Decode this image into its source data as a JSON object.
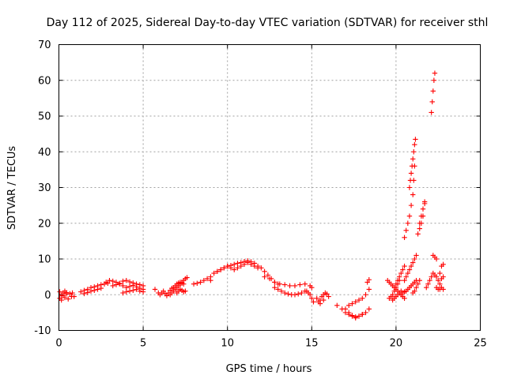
{
  "chart_data": {
    "type": "scatter",
    "title": "Day 112 of 2025, Sidereal Day-to-day VTEC variation (SDTVAR) for receiver sthl",
    "xlabel": "GPS time / hours",
    "ylabel": "SDTVAR / TECUs",
    "xlim": [
      0,
      25
    ],
    "ylim": [
      -10,
      70
    ],
    "xticks": [
      "0",
      "5",
      "10",
      "15",
      "20",
      "25"
    ],
    "yticks": [
      "-10",
      "0",
      "10",
      "20",
      "30",
      "40",
      "50",
      "60",
      "70"
    ],
    "grid": true,
    "marker": "plus",
    "color": "#ff0000",
    "series": [
      {
        "name": "t00",
        "x": [
          0.05,
          0.15,
          0.25,
          0.35,
          0.45,
          0.55,
          0.65,
          0.75
        ],
        "y": [
          0.8,
          -0.2,
          0.5,
          -0.8,
          0.2,
          -1.2,
          0.3,
          -0.5
        ]
      },
      {
        "name": "t01",
        "x": [
          0.05,
          0.15,
          0.25,
          0.35,
          0.45
        ],
        "y": [
          -1.0,
          -1.5,
          -0.3,
          1.0,
          0.6
        ]
      },
      {
        "name": "t02",
        "x": [
          0.8,
          0.9
        ],
        "y": [
          0.5,
          -0.5
        ]
      },
      {
        "name": "t03",
        "x": [
          1.3,
          1.5,
          1.7,
          1.9,
          2.1,
          2.3,
          2.5,
          2.7,
          2.9
        ],
        "y": [
          0.8,
          1.2,
          1.5,
          2.0,
          2.2,
          2.5,
          2.8,
          3.0,
          3.2
        ]
      },
      {
        "name": "t04",
        "x": [
          1.5,
          1.7,
          1.9,
          2.1,
          2.3,
          2.5
        ],
        "y": [
          0.3,
          0.6,
          1.0,
          1.2,
          1.5,
          1.8
        ]
      },
      {
        "name": "t05",
        "x": [
          2.8,
          3.0,
          3.2,
          3.4,
          3.6,
          3.8,
          4.0,
          4.2,
          4.4,
          4.6,
          4.8,
          5.0
        ],
        "y": [
          3.5,
          4.0,
          3.8,
          3.5,
          3.2,
          3.8,
          4.0,
          3.6,
          3.3,
          3.0,
          2.8,
          2.5
        ]
      },
      {
        "name": "t06",
        "x": [
          3.2,
          3.4,
          3.6,
          3.8,
          4.0,
          4.2,
          4.4,
          4.6,
          4.8,
          5.0
        ],
        "y": [
          2.5,
          2.8,
          3.0,
          2.5,
          2.0,
          2.3,
          2.6,
          2.2,
          1.8,
          1.5
        ]
      },
      {
        "name": "t07",
        "x": [
          3.8,
          4.0,
          4.2,
          4.4,
          4.6,
          4.8,
          5.0
        ],
        "y": [
          0.5,
          0.8,
          1.0,
          1.2,
          1.5,
          1.0,
          0.8
        ]
      },
      {
        "name": "t08",
        "x": [
          5.7,
          5.9
        ],
        "y": [
          1.5,
          0.5
        ]
      },
      {
        "name": "t09",
        "x": [
          6.0,
          6.1,
          6.2,
          6.3,
          6.4,
          6.5,
          6.6,
          6.7,
          6.8,
          6.9,
          7.0,
          7.1,
          7.2,
          7.3,
          7.4
        ],
        "y": [
          0.0,
          0.5,
          1.0,
          0.3,
          -0.3,
          0.5,
          1.2,
          1.8,
          2.0,
          2.5,
          3.0,
          3.3,
          3.5,
          3.2,
          3.0
        ]
      },
      {
        "name": "t10",
        "x": [
          6.6,
          6.7,
          6.8,
          6.9,
          7.0,
          7.1,
          7.2,
          7.3,
          7.4,
          7.5,
          7.6
        ],
        "y": [
          0.0,
          0.5,
          1.0,
          1.5,
          2.0,
          2.5,
          3.0,
          3.5,
          4.0,
          4.5,
          4.8
        ]
      },
      {
        "name": "t11",
        "x": [
          7.0,
          7.1,
          7.2,
          7.3,
          7.4,
          7.5
        ],
        "y": [
          0.5,
          1.0,
          1.5,
          1.2,
          0.8,
          1.0
        ]
      },
      {
        "name": "t12",
        "x": [
          8.0,
          8.2,
          8.4,
          8.6,
          8.8,
          9.0
        ],
        "y": [
          3.0,
          3.2,
          3.5,
          4.0,
          4.5,
          4.0
        ]
      },
      {
        "name": "t13",
        "x": [
          9.0,
          9.2,
          9.4,
          9.6,
          9.8,
          10.0,
          10.2,
          10.4,
          10.6,
          10.8,
          11.0,
          11.2,
          11.4,
          11.6,
          11.8,
          12.0,
          12.2,
          12.4,
          12.6,
          12.8,
          13.0
        ],
        "y": [
          5.0,
          6.0,
          6.5,
          7.0,
          7.5,
          8.0,
          8.2,
          8.5,
          8.8,
          9.0,
          9.3,
          9.5,
          9.2,
          8.8,
          8.0,
          7.5,
          6.5,
          5.5,
          4.5,
          3.5,
          3.0
        ]
      },
      {
        "name": "t14",
        "x": [
          9.4,
          9.6,
          9.8,
          10.0,
          10.2,
          10.4,
          10.6,
          10.8,
          11.0,
          11.2,
          11.4,
          11.6,
          11.8
        ],
        "y": [
          6.5,
          7.0,
          7.5,
          8.0,
          7.5,
          7.0,
          7.5,
          8.0,
          8.5,
          9.0,
          8.5,
          8.0,
          7.5
        ]
      },
      {
        "name": "t15",
        "x": [
          12.2,
          12.5,
          12.8,
          13.1,
          13.4,
          13.7,
          14.0,
          14.3,
          14.6,
          14.9,
          15.0
        ],
        "y": [
          5.0,
          4.5,
          3.5,
          3.0,
          2.8,
          2.5,
          2.5,
          2.8,
          3.0,
          2.5,
          2.0
        ]
      },
      {
        "name": "t16",
        "x": [
          12.8,
          13.0,
          13.2,
          13.4,
          13.6,
          13.8,
          14.0,
          14.2,
          14.4,
          14.6
        ],
        "y": [
          2.0,
          1.5,
          1.0,
          0.5,
          0.2,
          0.0,
          0.0,
          0.2,
          0.5,
          1.0
        ]
      },
      {
        "name": "t17",
        "x": [
          14.7,
          14.8,
          14.9,
          15.0,
          15.1
        ],
        "y": [
          1.0,
          0.5,
          0.0,
          -1.0,
          -2.0
        ]
      },
      {
        "name": "t18",
        "x": [
          15.3,
          15.4,
          15.5,
          15.6,
          15.7,
          15.8,
          15.9,
          16.0
        ],
        "y": [
          -1.0,
          -2.0,
          -1.5,
          -0.5,
          0.0,
          0.5,
          0.2,
          -0.5
        ]
      },
      {
        "name": "t19",
        "x": [
          15.5,
          15.7
        ],
        "y": [
          -2.5,
          -1.5
        ]
      },
      {
        "name": "t20",
        "x": [
          16.5,
          16.8,
          17.0,
          17.2,
          17.4,
          17.6,
          17.8,
          18.0,
          18.2,
          18.4
        ],
        "y": [
          -3.0,
          -4.0,
          -5.0,
          -5.5,
          -6.0,
          -6.5,
          -6.0,
          -5.5,
          -5.0,
          -4.0
        ]
      },
      {
        "name": "t21",
        "x": [
          17.0,
          17.2,
          17.4,
          17.6,
          17.8,
          18.0
        ],
        "y": [
          -4.0,
          -5.0,
          -5.8,
          -6.2,
          -6.0,
          -5.5
        ]
      },
      {
        "name": "t22",
        "x": [
          17.2,
          17.4,
          17.6,
          17.8,
          18.0,
          18.2,
          18.4
        ],
        "y": [
          -3.0,
          -2.5,
          -2.0,
          -1.5,
          -1.0,
          0.0,
          1.5
        ]
      },
      {
        "name": "t23",
        "x": [
          18.3,
          18.4
        ],
        "y": [
          3.5,
          4.2
        ]
      },
      {
        "name": "t24",
        "x": [
          19.5,
          19.6,
          19.7,
          19.8,
          19.9,
          20.0,
          20.1,
          20.2,
          20.3,
          20.4,
          20.5
        ],
        "y": [
          4.0,
          3.5,
          3.0,
          2.5,
          2.0,
          1.5,
          1.0,
          0.5,
          0.0,
          -0.5,
          -1.0
        ]
      },
      {
        "name": "t25",
        "x": [
          19.6,
          19.7,
          19.8,
          19.9,
          20.0,
          20.1,
          20.2
        ],
        "y": [
          -1.0,
          -0.5,
          0.0,
          1.0,
          2.0,
          3.0,
          4.0
        ]
      },
      {
        "name": "t26",
        "x": [
          19.8,
          19.9,
          20.0,
          20.1,
          20.2,
          20.3
        ],
        "y": [
          -1.5,
          -1.0,
          -0.5,
          0.0,
          0.5,
          0.0
        ]
      },
      {
        "name": "t27",
        "x": [
          20.0,
          20.1,
          20.2,
          20.3,
          20.4,
          20.5
        ],
        "y": [
          3.0,
          4.0,
          5.0,
          6.0,
          7.0,
          8.0
        ]
      },
      {
        "name": "t28",
        "x": [
          20.3,
          20.4,
          20.5,
          20.6,
          20.7,
          20.8,
          20.9,
          21.0,
          21.1,
          21.2
        ],
        "y": [
          1.0,
          0.5,
          0.8,
          1.0,
          1.5,
          2.0,
          2.5,
          3.0,
          3.5,
          4.0
        ]
      },
      {
        "name": "t29",
        "x": [
          20.5,
          20.6,
          20.7,
          20.8,
          20.9,
          21.0,
          21.1,
          21.2
        ],
        "y": [
          4.0,
          5.0,
          6.0,
          7.0,
          8.0,
          9.0,
          10.0,
          11.0
        ]
      },
      {
        "name": "t30",
        "x": [
          20.5,
          20.6,
          20.7,
          20.8,
          20.9,
          21.0,
          21.05,
          21.1
        ],
        "y": [
          16.0,
          18.0,
          20.0,
          22.0,
          25.0,
          28.0,
          32.0,
          36.0
        ]
      },
      {
        "name": "t31",
        "x": [
          20.8,
          20.85,
          20.9,
          20.95,
          21.0,
          21.05,
          21.1,
          21.15
        ],
        "y": [
          30.0,
          32.0,
          34.0,
          36.0,
          38.0,
          40.0,
          42.0,
          43.5
        ]
      },
      {
        "name": "t32",
        "x": [
          21.0,
          21.1,
          21.2,
          21.3,
          21.4
        ],
        "y": [
          0.5,
          1.0,
          2.0,
          3.0,
          4.0
        ]
      },
      {
        "name": "t33",
        "x": [
          21.3,
          21.4,
          21.5,
          21.6,
          21.7
        ],
        "y": [
          17.0,
          18.5,
          20.0,
          22.0,
          25.5
        ]
      },
      {
        "name": "t34",
        "x": [
          21.4,
          21.5,
          21.6,
          21.7
        ],
        "y": [
          20.0,
          22.0,
          24.0,
          26.0
        ]
      },
      {
        "name": "t35",
        "x": [
          21.8,
          21.9,
          22.0,
          22.1,
          22.2,
          22.3,
          22.4
        ],
        "y": [
          2.0,
          3.0,
          4.0,
          5.0,
          6.0,
          5.5,
          5.0
        ]
      },
      {
        "name": "t36",
        "x": [
          22.1,
          22.15,
          22.2,
          22.25,
          22.3
        ],
        "y": [
          51.0,
          54.0,
          57.0,
          60.0,
          62.0
        ]
      },
      {
        "name": "t37",
        "x": [
          22.2,
          22.3,
          22.4
        ],
        "y": [
          11.0,
          10.5,
          10.0
        ]
      },
      {
        "name": "t38",
        "x": [
          22.4,
          22.5,
          22.6,
          22.7,
          22.8
        ],
        "y": [
          2.0,
          1.5,
          1.5,
          2.0,
          1.5
        ]
      },
      {
        "name": "t39",
        "x": [
          22.5,
          22.6,
          22.7,
          22.8
        ],
        "y": [
          4.0,
          6.0,
          8.0,
          8.5
        ]
      },
      {
        "name": "t40",
        "x": [
          22.6,
          22.7,
          22.8
        ],
        "y": [
          3.0,
          4.5,
          5.0
        ]
      }
    ]
  }
}
